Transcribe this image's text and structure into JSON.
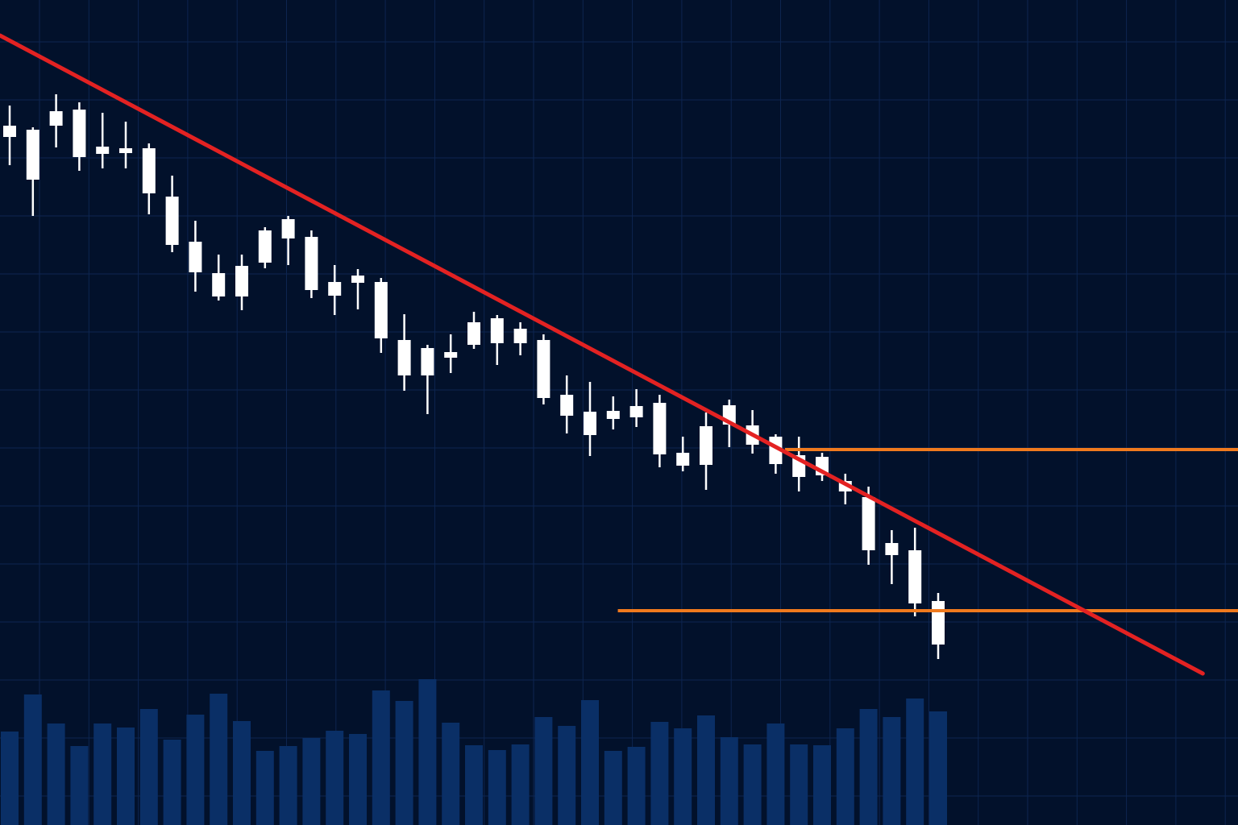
{
  "chart_data": {
    "type": "candlestick",
    "title": "",
    "xlabel": "",
    "ylabel": "",
    "grid": true,
    "ylim": [
      0,
      102.4
    ],
    "volume_ylim": [
      0,
      2000
    ],
    "colors": {
      "background": "#02112b",
      "grid": "#0d2550",
      "candle": "#ffffff",
      "volume": "#0a2f66",
      "trendline": "#e32222",
      "levels": "#f07a1e"
    },
    "candles": [
      {
        "o": 86.8,
        "h": 89.3,
        "l": 81.9,
        "c": 85.4
      },
      {
        "o": 86.3,
        "h": 86.6,
        "l": 75.6,
        "c": 80.1
      },
      {
        "o": 88.6,
        "h": 90.7,
        "l": 84.1,
        "c": 86.8
      },
      {
        "o": 88.8,
        "h": 89.7,
        "l": 81.2,
        "c": 82.9
      },
      {
        "o": 84.2,
        "h": 88.4,
        "l": 81.5,
        "c": 83.3
      },
      {
        "o": 84.0,
        "h": 87.3,
        "l": 81.5,
        "c": 83.4
      },
      {
        "o": 84.0,
        "h": 84.6,
        "l": 75.8,
        "c": 78.4
      },
      {
        "o": 78.0,
        "h": 80.6,
        "l": 71.1,
        "c": 72.0
      },
      {
        "o": 72.4,
        "h": 75.0,
        "l": 66.2,
        "c": 68.6
      },
      {
        "o": 68.5,
        "h": 70.8,
        "l": 65.1,
        "c": 65.6
      },
      {
        "o": 65.6,
        "h": 70.8,
        "l": 63.9,
        "c": 69.4
      },
      {
        "o": 69.8,
        "h": 74.2,
        "l": 69.1,
        "c": 73.8
      },
      {
        "o": 72.8,
        "h": 75.6,
        "l": 69.5,
        "c": 75.2
      },
      {
        "o": 73.0,
        "h": 73.8,
        "l": 65.4,
        "c": 66.4
      },
      {
        "o": 67.4,
        "h": 69.5,
        "l": 63.3,
        "c": 65.7
      },
      {
        "o": 67.3,
        "h": 69.0,
        "l": 64.0,
        "c": 68.2
      },
      {
        "o": 67.4,
        "h": 67.9,
        "l": 58.6,
        "c": 60.4
      },
      {
        "o": 60.2,
        "h": 63.4,
        "l": 53.9,
        "c": 55.8
      },
      {
        "o": 55.8,
        "h": 59.6,
        "l": 51.0,
        "c": 59.2
      },
      {
        "o": 58.0,
        "h": 60.9,
        "l": 56.1,
        "c": 58.7
      },
      {
        "o": 59.6,
        "h": 63.7,
        "l": 59.1,
        "c": 62.4
      },
      {
        "o": 62.9,
        "h": 63.3,
        "l": 57.1,
        "c": 59.8
      },
      {
        "o": 61.6,
        "h": 62.4,
        "l": 58.3,
        "c": 59.8
      },
      {
        "o": 60.2,
        "h": 60.9,
        "l": 52.2,
        "c": 53.0
      },
      {
        "o": 53.4,
        "h": 55.8,
        "l": 48.6,
        "c": 50.8
      },
      {
        "o": 51.3,
        "h": 55.0,
        "l": 45.8,
        "c": 48.4
      },
      {
        "o": 51.4,
        "h": 53.2,
        "l": 49.1,
        "c": 50.4
      },
      {
        "o": 52.0,
        "h": 54.1,
        "l": 49.4,
        "c": 50.6
      },
      {
        "o": 52.4,
        "h": 53.4,
        "l": 44.4,
        "c": 46.0
      },
      {
        "o": 46.2,
        "h": 48.2,
        "l": 43.9,
        "c": 44.6
      },
      {
        "o": 44.7,
        "h": 51.2,
        "l": 41.6,
        "c": 49.5
      },
      {
        "o": 49.7,
        "h": 52.8,
        "l": 46.9,
        "c": 52.1
      },
      {
        "o": 49.6,
        "h": 51.5,
        "l": 46.1,
        "c": 47.2
      },
      {
        "o": 48.2,
        "h": 48.5,
        "l": 43.6,
        "c": 44.8
      },
      {
        "o": 45.9,
        "h": 48.2,
        "l": 41.4,
        "c": 43.2
      },
      {
        "o": 45.7,
        "h": 46.2,
        "l": 42.7,
        "c": 43.4
      },
      {
        "o": 42.7,
        "h": 43.6,
        "l": 39.8,
        "c": 41.4
      },
      {
        "o": 40.7,
        "h": 42.0,
        "l": 32.3,
        "c": 34.1
      },
      {
        "o": 35.0,
        "h": 36.6,
        "l": 29.9,
        "c": 33.5
      },
      {
        "o": 34.1,
        "h": 36.9,
        "l": 25.9,
        "c": 27.5
      },
      {
        "o": 27.8,
        "h": 28.8,
        "l": 20.6,
        "c": 22.4
      }
    ],
    "volume": [
      1160,
      1620,
      1260,
      980,
      1260,
      1210,
      1440,
      1060,
      1370,
      1630,
      1290,
      920,
      980,
      1080,
      1170,
      1130,
      1670,
      1540,
      1810,
      1270,
      990,
      930,
      1000,
      1340,
      1230,
      1550,
      920,
      970,
      1280,
      1200,
      1360,
      1090,
      1000,
      1260,
      1000,
      990,
      1200,
      1440,
      1340,
      1570,
      1410
    ],
    "trendline": {
      "from": {
        "index": -0.42,
        "price": 98.0
      },
      "to": {
        "index": 51.4,
        "price": 18.8
      }
    },
    "levels": [
      {
        "price": 46.6,
        "from_index": 33.4
      },
      {
        "price": 26.6,
        "from_index": 26.2
      }
    ]
  }
}
